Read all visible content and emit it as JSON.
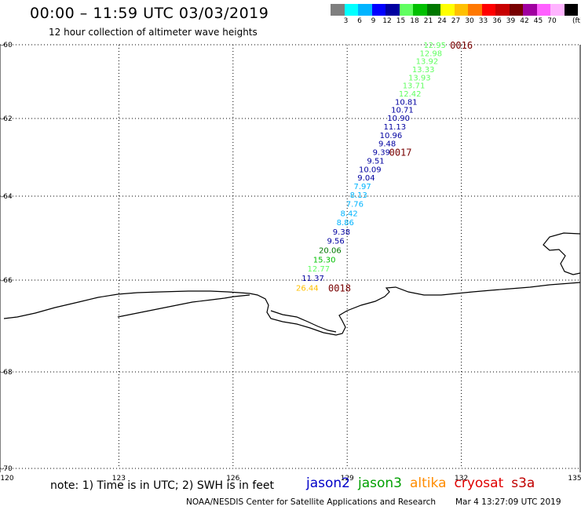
{
  "title": "00:00 – 11:59 UTC 03/03/2019",
  "subtitle": "12 hour collection of altimeter wave heights",
  "color_scale": {
    "colors": [
      "#7f7f7f",
      "#00ffff",
      "#00b4ff",
      "#0000ff",
      "#0000a0",
      "#60ff60",
      "#00c000",
      "#007800",
      "#ffff00",
      "#ffc000",
      "#ff7800",
      "#ff0000",
      "#c80000",
      "#780000",
      "#a000a0",
      "#ff60ff",
      "#ffb4ff",
      "#000000"
    ],
    "labels": [
      "3",
      "6",
      "9",
      "12",
      "15",
      "18",
      "21",
      "24",
      "27",
      "30",
      "33",
      "36",
      "39",
      "42",
      "45",
      "70"
    ],
    "unit": "(ft)"
  },
  "axes": {
    "lon_ticks": [
      "120",
      "123",
      "126",
      "129",
      "132",
      "135"
    ],
    "lat_ticks": [
      "-60",
      "-62",
      "-64",
      "-66",
      "-68",
      "-70"
    ],
    "lon_range": [
      120,
      135
    ],
    "lat_range": [
      -70,
      -60
    ]
  },
  "track": {
    "observations": [
      {
        "text": "12.95",
        "lon": 131.3,
        "lat": -60.0,
        "color": "#60ff60"
      },
      {
        "text": "12.98",
        "lon": 131.2,
        "lat": -60.22,
        "color": "#60ff60"
      },
      {
        "text": "13.92",
        "lon": 131.1,
        "lat": -60.44,
        "color": "#60ff60"
      },
      {
        "text": "13.33",
        "lon": 131.0,
        "lat": -60.66,
        "color": "#60ff60"
      },
      {
        "text": "13.93",
        "lon": 130.9,
        "lat": -60.88,
        "color": "#60ff60"
      },
      {
        "text": "13.71",
        "lon": 130.75,
        "lat": -61.1,
        "color": "#60ff60"
      },
      {
        "text": "12.42",
        "lon": 130.65,
        "lat": -61.32,
        "color": "#60ff60"
      },
      {
        "text": "10.81",
        "lon": 130.55,
        "lat": -61.54,
        "color": "#0000a0"
      },
      {
        "text": "10.71",
        "lon": 130.45,
        "lat": -61.76,
        "color": "#0000a0"
      },
      {
        "text": "10.90",
        "lon": 130.35,
        "lat": -61.98,
        "color": "#0000a0"
      },
      {
        "text": "11.13",
        "lon": 130.25,
        "lat": -62.2,
        "color": "#0000a0"
      },
      {
        "text": "10.96",
        "lon": 130.15,
        "lat": -62.42,
        "color": "#0000a0"
      },
      {
        "text": "9.48",
        "lon": 130.05,
        "lat": -62.64,
        "color": "#0000a0"
      },
      {
        "text": "9.39",
        "lon": 129.9,
        "lat": -62.86,
        "color": "#0000a0"
      },
      {
        "text": "9.51",
        "lon": 129.75,
        "lat": -63.08,
        "color": "#0000a0"
      },
      {
        "text": "10.09",
        "lon": 129.6,
        "lat": -63.3,
        "color": "#0000a0"
      },
      {
        "text": "9.04",
        "lon": 129.5,
        "lat": -63.52,
        "color": "#0000a0"
      },
      {
        "text": "7.97",
        "lon": 129.4,
        "lat": -63.74,
        "color": "#00b4ff"
      },
      {
        "text": "8.13",
        "lon": 129.3,
        "lat": -63.96,
        "color": "#00b4ff"
      },
      {
        "text": "7.76",
        "lon": 129.2,
        "lat": -64.18,
        "color": "#00b4ff"
      },
      {
        "text": "8.42",
        "lon": 129.05,
        "lat": -64.4,
        "color": "#00b4ff"
      },
      {
        "text": "8.86",
        "lon": 128.95,
        "lat": -64.62,
        "color": "#00b4ff"
      },
      {
        "text": "9.38",
        "lon": 128.85,
        "lat": -64.84,
        "color": "#0000a0"
      },
      {
        "text": "9.56",
        "lon": 128.7,
        "lat": -65.06,
        "color": "#0000a0"
      },
      {
        "text": "20.06",
        "lon": 128.55,
        "lat": -65.28,
        "color": "#007800"
      },
      {
        "text": "15.30",
        "lon": 128.4,
        "lat": -65.5,
        "color": "#00c000"
      },
      {
        "text": "12.77",
        "lon": 128.25,
        "lat": -65.72,
        "color": "#60ff60"
      },
      {
        "text": "11.37",
        "lon": 128.1,
        "lat": -65.94,
        "color": "#0000a0"
      },
      {
        "text": "26.44",
        "lon": 127.95,
        "lat": -66.16,
        "color": "#ffc000"
      }
    ],
    "time_labels": [
      {
        "text": "0016",
        "lon": 132.0,
        "lat": -60.0
      },
      {
        "text": "0017",
        "lon": 130.4,
        "lat": -62.86
      },
      {
        "text": "0018",
        "lon": 128.8,
        "lat": -66.16
      }
    ],
    "time_label_color": "#780000"
  },
  "footer": {
    "note": "note: 1) Time is in UTC; 2) SWH is in feet",
    "satellites": [
      {
        "name": "jason2",
        "color": "#0000c8"
      },
      {
        "name": "jason3",
        "color": "#00a000"
      },
      {
        "name": "altika",
        "color": "#ff8c00"
      },
      {
        "name": "cryosat",
        "color": "#e00000"
      },
      {
        "name": "s3a",
        "color": "#c00000"
      }
    ],
    "credit": "NOAA/NESDIS Center for Satellite Applications and Research",
    "timestamp": "Mar  4 13:27:09 UTC 2019"
  }
}
